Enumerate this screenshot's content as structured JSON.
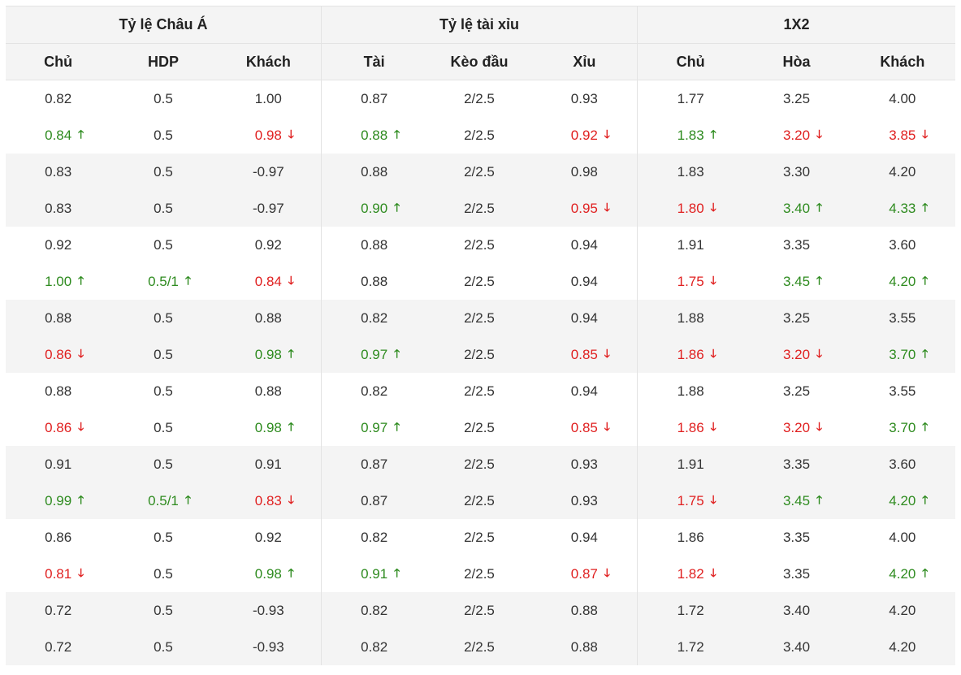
{
  "groups": [
    {
      "title": "Tỷ lệ Châu Á",
      "columns": [
        "Chủ",
        "HDP",
        "Khách"
      ]
    },
    {
      "title": "Tỷ lệ tài xỉu",
      "columns": [
        "Tài",
        "Kèo đầu",
        "Xỉu"
      ]
    },
    {
      "title": "1X2",
      "columns": [
        "Chủ",
        "Hòa",
        "Khách"
      ]
    }
  ],
  "arrow_up": "🡑",
  "arrow_down": "🡓",
  "colors": {
    "up": "#2e8b1f",
    "down": "#e02020",
    "alt_row": "#f4f4f4"
  },
  "pairs": [
    {
      "open": [
        {
          "v": "0.82"
        },
        {
          "v": "0.5"
        },
        {
          "v": "1.00"
        },
        {
          "v": "0.87"
        },
        {
          "v": "2/2.5"
        },
        {
          "v": "0.93"
        },
        {
          "v": "1.77"
        },
        {
          "v": "3.25"
        },
        {
          "v": "4.00"
        }
      ],
      "live": [
        {
          "v": "0.84",
          "d": "up"
        },
        {
          "v": "0.5"
        },
        {
          "v": "0.98",
          "d": "down"
        },
        {
          "v": "0.88",
          "d": "up"
        },
        {
          "v": "2/2.5"
        },
        {
          "v": "0.92",
          "d": "down"
        },
        {
          "v": "1.83",
          "d": "up"
        },
        {
          "v": "3.20",
          "d": "down"
        },
        {
          "v": "3.85",
          "d": "down"
        }
      ]
    },
    {
      "open": [
        {
          "v": "0.83"
        },
        {
          "v": "0.5"
        },
        {
          "v": "-0.97"
        },
        {
          "v": "0.88"
        },
        {
          "v": "2/2.5"
        },
        {
          "v": "0.98"
        },
        {
          "v": "1.83"
        },
        {
          "v": "3.30"
        },
        {
          "v": "4.20"
        }
      ],
      "live": [
        {
          "v": "0.83"
        },
        {
          "v": "0.5"
        },
        {
          "v": "-0.97"
        },
        {
          "v": "0.90",
          "d": "up"
        },
        {
          "v": "2/2.5"
        },
        {
          "v": "0.95",
          "d": "down"
        },
        {
          "v": "1.80",
          "d": "down"
        },
        {
          "v": "3.40",
          "d": "up"
        },
        {
          "v": "4.33",
          "d": "up"
        }
      ]
    },
    {
      "open": [
        {
          "v": "0.92"
        },
        {
          "v": "0.5"
        },
        {
          "v": "0.92"
        },
        {
          "v": "0.88"
        },
        {
          "v": "2/2.5"
        },
        {
          "v": "0.94"
        },
        {
          "v": "1.91"
        },
        {
          "v": "3.35"
        },
        {
          "v": "3.60"
        }
      ],
      "live": [
        {
          "v": "1.00",
          "d": "up"
        },
        {
          "v": "0.5/1",
          "d": "up"
        },
        {
          "v": "0.84",
          "d": "down"
        },
        {
          "v": "0.88"
        },
        {
          "v": "2/2.5"
        },
        {
          "v": "0.94"
        },
        {
          "v": "1.75",
          "d": "down"
        },
        {
          "v": "3.45",
          "d": "up"
        },
        {
          "v": "4.20",
          "d": "up"
        }
      ]
    },
    {
      "open": [
        {
          "v": "0.88"
        },
        {
          "v": "0.5"
        },
        {
          "v": "0.88"
        },
        {
          "v": "0.82"
        },
        {
          "v": "2/2.5"
        },
        {
          "v": "0.94"
        },
        {
          "v": "1.88"
        },
        {
          "v": "3.25"
        },
        {
          "v": "3.55"
        }
      ],
      "live": [
        {
          "v": "0.86",
          "d": "down"
        },
        {
          "v": "0.5"
        },
        {
          "v": "0.98",
          "d": "up"
        },
        {
          "v": "0.97",
          "d": "up"
        },
        {
          "v": "2/2.5"
        },
        {
          "v": "0.85",
          "d": "down"
        },
        {
          "v": "1.86",
          "d": "down"
        },
        {
          "v": "3.20",
          "d": "down"
        },
        {
          "v": "3.70",
          "d": "up"
        }
      ]
    },
    {
      "open": [
        {
          "v": "0.88"
        },
        {
          "v": "0.5"
        },
        {
          "v": "0.88"
        },
        {
          "v": "0.82"
        },
        {
          "v": "2/2.5"
        },
        {
          "v": "0.94"
        },
        {
          "v": "1.88"
        },
        {
          "v": "3.25"
        },
        {
          "v": "3.55"
        }
      ],
      "live": [
        {
          "v": "0.86",
          "d": "down"
        },
        {
          "v": "0.5"
        },
        {
          "v": "0.98",
          "d": "up"
        },
        {
          "v": "0.97",
          "d": "up"
        },
        {
          "v": "2/2.5"
        },
        {
          "v": "0.85",
          "d": "down"
        },
        {
          "v": "1.86",
          "d": "down"
        },
        {
          "v": "3.20",
          "d": "down"
        },
        {
          "v": "3.70",
          "d": "up"
        }
      ]
    },
    {
      "open": [
        {
          "v": "0.91"
        },
        {
          "v": "0.5"
        },
        {
          "v": "0.91"
        },
        {
          "v": "0.87"
        },
        {
          "v": "2/2.5"
        },
        {
          "v": "0.93"
        },
        {
          "v": "1.91"
        },
        {
          "v": "3.35"
        },
        {
          "v": "3.60"
        }
      ],
      "live": [
        {
          "v": "0.99",
          "d": "up"
        },
        {
          "v": "0.5/1",
          "d": "up"
        },
        {
          "v": "0.83",
          "d": "down"
        },
        {
          "v": "0.87"
        },
        {
          "v": "2/2.5"
        },
        {
          "v": "0.93"
        },
        {
          "v": "1.75",
          "d": "down"
        },
        {
          "v": "3.45",
          "d": "up"
        },
        {
          "v": "4.20",
          "d": "up"
        }
      ]
    },
    {
      "open": [
        {
          "v": "0.86"
        },
        {
          "v": "0.5"
        },
        {
          "v": "0.92"
        },
        {
          "v": "0.82"
        },
        {
          "v": "2/2.5"
        },
        {
          "v": "0.94"
        },
        {
          "v": "1.86"
        },
        {
          "v": "3.35"
        },
        {
          "v": "4.00"
        }
      ],
      "live": [
        {
          "v": "0.81",
          "d": "down"
        },
        {
          "v": "0.5"
        },
        {
          "v": "0.98",
          "d": "up"
        },
        {
          "v": "0.91",
          "d": "up"
        },
        {
          "v": "2/2.5"
        },
        {
          "v": "0.87",
          "d": "down"
        },
        {
          "v": "1.82",
          "d": "down"
        },
        {
          "v": "3.35"
        },
        {
          "v": "4.20",
          "d": "up"
        }
      ]
    },
    {
      "open": [
        {
          "v": "0.72"
        },
        {
          "v": "0.5"
        },
        {
          "v": "-0.93"
        },
        {
          "v": "0.82"
        },
        {
          "v": "2/2.5"
        },
        {
          "v": "0.88"
        },
        {
          "v": "1.72"
        },
        {
          "v": "3.40"
        },
        {
          "v": "4.20"
        }
      ],
      "live": [
        {
          "v": "0.72"
        },
        {
          "v": "0.5"
        },
        {
          "v": "-0.93"
        },
        {
          "v": "0.82"
        },
        {
          "v": "2/2.5"
        },
        {
          "v": "0.88"
        },
        {
          "v": "1.72"
        },
        {
          "v": "3.40"
        },
        {
          "v": "4.20"
        }
      ]
    }
  ]
}
